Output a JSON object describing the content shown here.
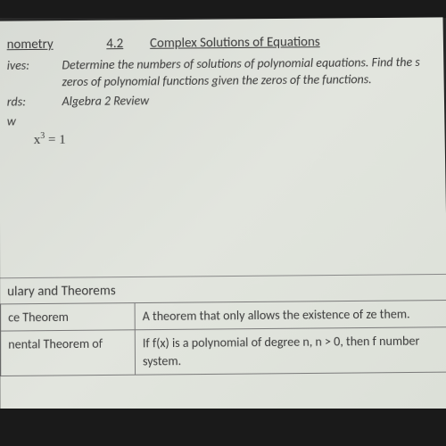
{
  "header": {
    "subject": "nometry",
    "section_num": "4.2",
    "section_title": "Complex Solutions of Equations"
  },
  "meta": {
    "objectives_label": "ives:",
    "objectives_text": "Determine the numbers of solutions of polynomial equations. Find the s zeros of polynomial functions given the zeros of the functions.",
    "standards_label": "rds:",
    "standards_text": "Algebra 2 Review",
    "extra_label": "w"
  },
  "equation": {
    "base": "x",
    "exp": "3",
    "rhs": " = 1"
  },
  "theorems": {
    "header": "ulary and Theorems",
    "rows": [
      {
        "name": "ce Theorem",
        "desc": "A theorem that only allows the existence of ze them."
      },
      {
        "name": "nental Theorem of",
        "desc": "If f(x) is a polynomial of degree n, n > 0, then f number system."
      }
    ]
  }
}
